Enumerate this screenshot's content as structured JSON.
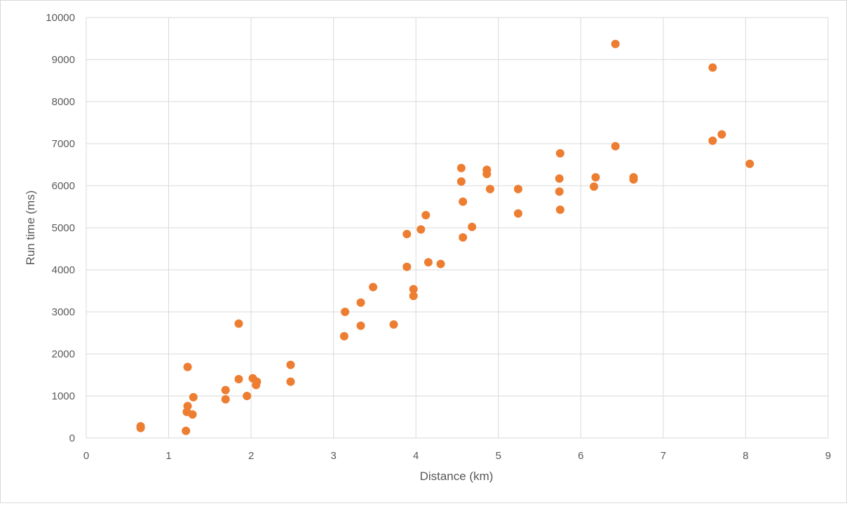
{
  "chart_data": {
    "type": "scatter",
    "title": "",
    "xlabel": "Distance (km)",
    "ylabel": "Run time (ms)",
    "xlim": [
      0,
      9
    ],
    "ylim": [
      0,
      10000
    ],
    "x_ticks": [
      "0",
      "1",
      "2",
      "3",
      "4",
      "5",
      "6",
      "7",
      "8",
      "9"
    ],
    "y_ticks": [
      "0",
      "1000",
      "2000",
      "3000",
      "4000",
      "5000",
      "6000",
      "7000",
      "8000",
      "9000",
      "10000"
    ],
    "grid": true,
    "legend": "none",
    "marker_color": "#ED7D31",
    "series": [
      {
        "points": [
          [
            0.66,
            280
          ],
          [
            0.66,
            240
          ],
          [
            1.21,
            170
          ],
          [
            1.22,
            620
          ],
          [
            1.23,
            760
          ],
          [
            1.23,
            1690
          ],
          [
            1.29,
            560
          ],
          [
            1.3,
            970
          ],
          [
            1.69,
            1140
          ],
          [
            1.69,
            920
          ],
          [
            1.85,
            2720
          ],
          [
            1.85,
            1400
          ],
          [
            1.95,
            1000
          ],
          [
            2.02,
            1420
          ],
          [
            2.06,
            1260
          ],
          [
            2.07,
            1340
          ],
          [
            2.48,
            1740
          ],
          [
            2.48,
            1340
          ],
          [
            3.13,
            2420
          ],
          [
            3.14,
            3000
          ],
          [
            3.33,
            3220
          ],
          [
            3.33,
            2670
          ],
          [
            3.48,
            3590
          ],
          [
            3.73,
            2700
          ],
          [
            3.89,
            4850
          ],
          [
            3.89,
            4070
          ],
          [
            3.97,
            3540
          ],
          [
            3.97,
            3380
          ],
          [
            4.06,
            4960
          ],
          [
            4.12,
            5300
          ],
          [
            4.15,
            4180
          ],
          [
            4.3,
            4140
          ],
          [
            4.55,
            6420
          ],
          [
            4.55,
            6100
          ],
          [
            4.57,
            5620
          ],
          [
            4.57,
            4770
          ],
          [
            4.68,
            5020
          ],
          [
            4.86,
            6380
          ],
          [
            4.86,
            6280
          ],
          [
            4.9,
            5920
          ],
          [
            5.24,
            5920
          ],
          [
            5.24,
            5340
          ],
          [
            5.74,
            6170
          ],
          [
            5.74,
            5860
          ],
          [
            5.75,
            6770
          ],
          [
            5.75,
            5430
          ],
          [
            6.16,
            5980
          ],
          [
            6.18,
            6200
          ],
          [
            6.42,
            9370
          ],
          [
            6.42,
            6940
          ],
          [
            6.64,
            6200
          ],
          [
            6.64,
            6150
          ],
          [
            7.6,
            8810
          ],
          [
            7.6,
            7070
          ],
          [
            7.71,
            7220
          ],
          [
            8.05,
            6520
          ]
        ]
      }
    ]
  }
}
